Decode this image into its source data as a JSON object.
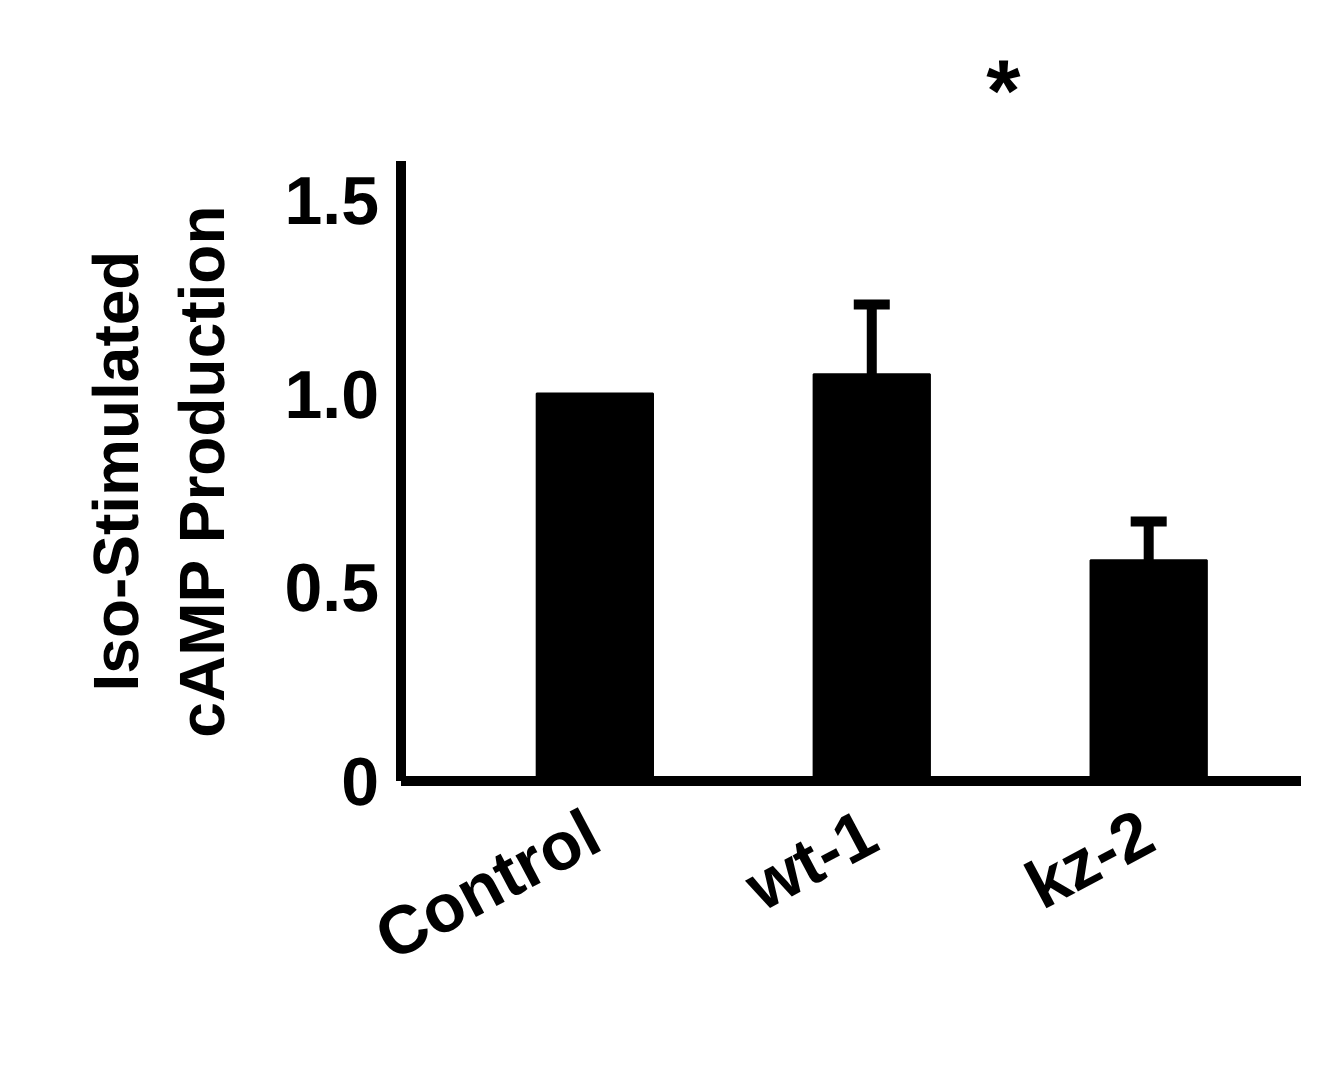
{
  "chart_data": {
    "type": "bar",
    "ylabel": "Iso-Stimulated\ncAMP Production",
    "categories": [
      "Control",
      "wt-1",
      "kz-2"
    ],
    "values": [
      1.0,
      1.05,
      0.57
    ],
    "errors": [
      null,
      0.18,
      0.1
    ],
    "color": "#000000",
    "ylim": [
      0,
      1.6
    ],
    "yticks": [
      0,
      0.5,
      {
        "value": 1.0,
        "label": "1.0"
      },
      1.5
    ],
    "grid": false,
    "annotations": [
      "*"
    ]
  }
}
